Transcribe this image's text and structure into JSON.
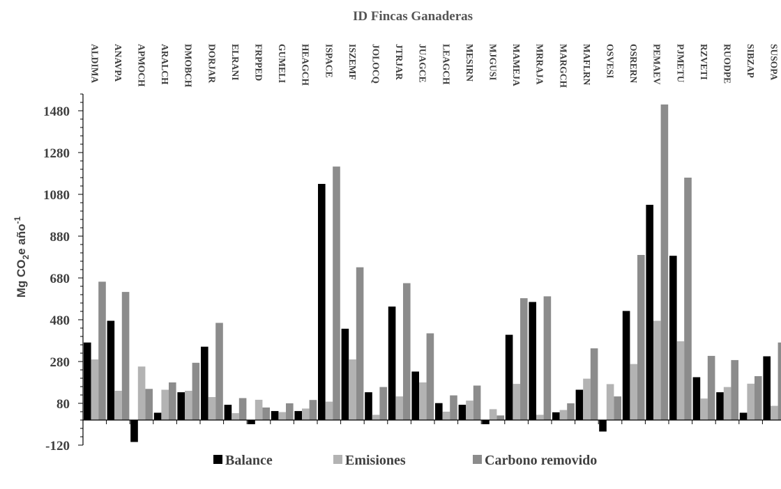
{
  "chart_data": {
    "type": "bar",
    "title": "ID Fincas Ganaderas",
    "ylabel": "Mg CO",
    "ylabel_sub": "2",
    "ylabel_mid": "e año",
    "ylabel_sup": "-1",
    "ylim": [
      -120,
      1560
    ],
    "yticks": [
      "-120",
      "80",
      "280",
      "480",
      "680",
      "880",
      "1080",
      "1280",
      "1480"
    ],
    "ytick_values": [
      -120,
      80,
      280,
      480,
      680,
      880,
      1080,
      1280,
      1480
    ],
    "categories": [
      "ALDIMA",
      "ANAVPA",
      "APMOCH",
      "ARALCH",
      "DMOBCH",
      "DORJAR",
      "ELRANI",
      "FRPPED",
      "GUMELI",
      "HEAGCH",
      "ISPACE",
      "ISZEMF",
      "JOLOCQ",
      "JTRJAR",
      "JUAGCE",
      "LEAGCH",
      "MESIRN",
      "MJGUSI",
      "MAMEJA",
      "MRRAJA",
      "MARGCH",
      "MAFLRN",
      "OSVESI",
      "OSRERN",
      "PEMAEV",
      "PJMETU",
      "RZVETI",
      "RUODPE",
      "SIBZAP",
      "SUSOPA"
    ],
    "series": [
      {
        "name": "Balance",
        "color": "#000000",
        "values": [
          371,
          475,
          -105,
          35,
          133,
          351,
          73,
          -20,
          43,
          43,
          1130,
          437,
          133,
          543,
          232,
          81,
          73,
          -20,
          408,
          565,
          37,
          145,
          -55,
          522,
          1030,
          786,
          205,
          133,
          35,
          305
        ]
      },
      {
        "name": "Emisiones",
        "color": "#b3b3b3",
        "values": [
          290,
          140,
          256,
          145,
          140,
          110,
          33,
          97,
          38,
          55,
          88,
          290,
          25,
          113,
          180,
          40,
          93,
          52,
          173,
          25,
          48,
          198,
          172,
          268,
          475,
          377,
          103,
          158,
          174,
          68
        ]
      },
      {
        "name": "Carbono removido",
        "color": "#8c8c8c",
        "values": [
          662,
          613,
          149,
          180,
          274,
          465,
          105,
          60,
          80,
          96,
          1213,
          731,
          158,
          655,
          415,
          118,
          165,
          22,
          583,
          592,
          80,
          343,
          113,
          790,
          1510,
          1160,
          307,
          287,
          210,
          371
        ]
      }
    ],
    "legend_position": "bottom",
    "grid": false
  }
}
